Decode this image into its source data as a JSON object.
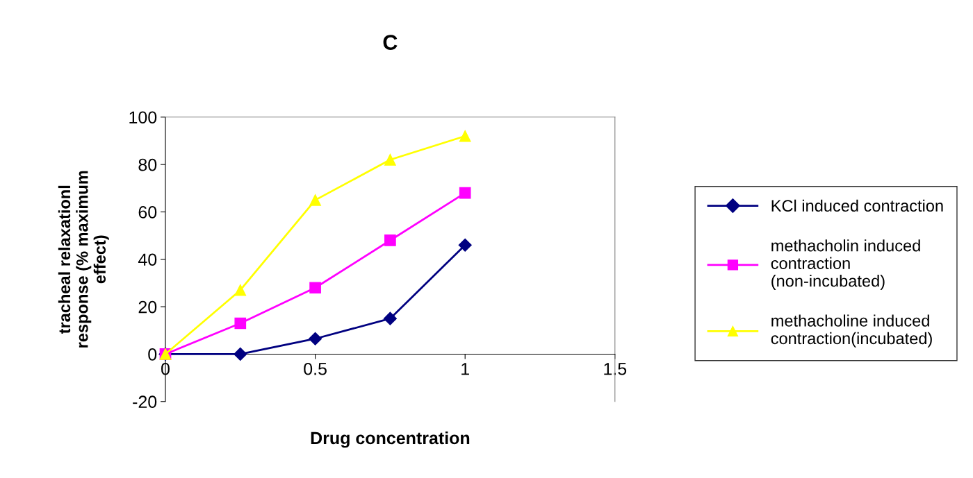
{
  "chart_data": {
    "type": "line",
    "title": "C",
    "xlabel": "Drug concentration",
    "ylabel": "tracheal relaxationl response (% maximum effect)",
    "x": [
      0,
      0.25,
      0.5,
      0.75,
      1
    ],
    "series": [
      {
        "name": "KCl induced contraction",
        "color": "#000080",
        "marker": "diamond",
        "values": [
          0,
          0,
          6.5,
          15,
          46
        ]
      },
      {
        "name": "methacholin induced contraction (non-incubated)",
        "color": "#ff00ff",
        "marker": "square",
        "values": [
          0,
          13,
          28,
          48,
          68
        ]
      },
      {
        "name": "methacholine induced contraction(incubated)",
        "color": "#ffff00",
        "marker": "triangle",
        "values": [
          0,
          27,
          65,
          82,
          92
        ]
      }
    ],
    "xlim": [
      0,
      1.5
    ],
    "xticks": [
      0,
      0.5,
      1,
      1.5
    ],
    "ylim": [
      -20,
      100
    ],
    "yticks": [
      -20,
      0,
      20,
      40,
      60,
      80,
      100
    ],
    "grid": false,
    "legend": "right",
    "line_style": "solid"
  }
}
